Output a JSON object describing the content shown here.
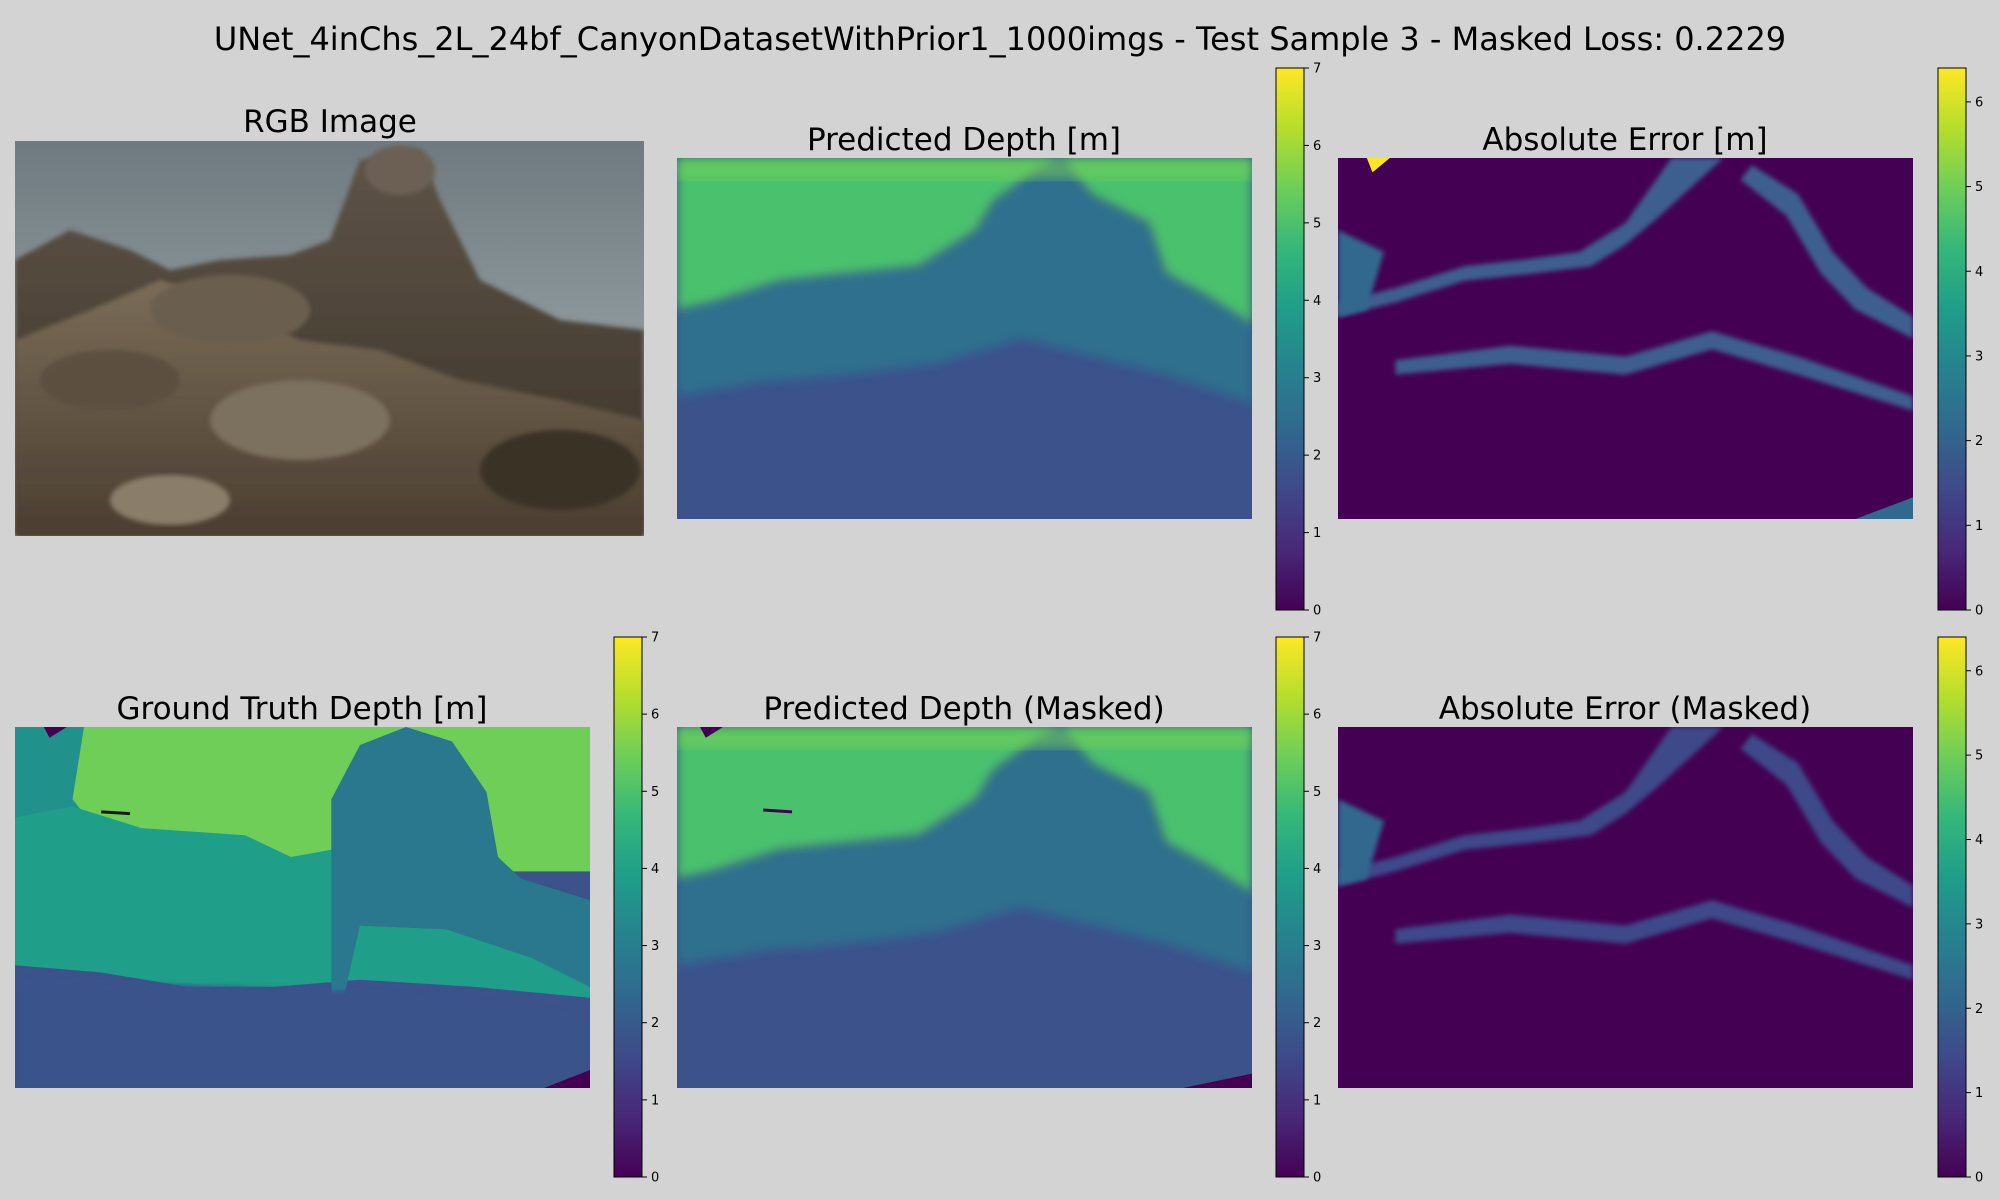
{
  "suptitle": "UNet_4inChs_2L_24bf_CanyonDatasetWithPrior1_1000imgs - Test Sample 3 - Masked Loss: 0.2229",
  "colormap": {
    "name": "viridis",
    "stops": [
      "#440154",
      "#482878",
      "#3e4989",
      "#31688e",
      "#26828e",
      "#1f9e89",
      "#35b779",
      "#6ece58",
      "#b5de2b",
      "#fde725"
    ]
  },
  "panels": [
    {
      "id": "rgb",
      "title": "RGB Image",
      "kind": "photo"
    },
    {
      "id": "pred",
      "title": "Predicted Depth [m]",
      "kind": "depth",
      "mask": false,
      "colorbar": {
        "min": 0,
        "max": 7,
        "ticks": [
          "0",
          "1",
          "2",
          "3",
          "4",
          "5",
          "6",
          "7"
        ]
      }
    },
    {
      "id": "err",
      "title": "Absolute Error [m]",
      "kind": "error",
      "mask": false,
      "colorbar": {
        "min": 0,
        "max": 6.4,
        "ticks": [
          "0",
          "1",
          "2",
          "3",
          "4",
          "5",
          "6"
        ]
      }
    },
    {
      "id": "gt",
      "title": "Ground Truth Depth [m]",
      "kind": "gt",
      "mask": true,
      "colorbar": {
        "min": 0,
        "max": 7,
        "ticks": [
          "0",
          "1",
          "2",
          "3",
          "4",
          "5",
          "6",
          "7"
        ]
      }
    },
    {
      "id": "predm",
      "title": "Predicted Depth (Masked)",
      "kind": "depth",
      "mask": true,
      "colorbar": {
        "min": 0,
        "max": 7,
        "ticks": [
          "0",
          "1",
          "2",
          "3",
          "4",
          "5",
          "6",
          "7"
        ]
      }
    },
    {
      "id": "errm",
      "title": "Absolute Error (Masked)",
      "kind": "error",
      "mask": true,
      "colorbar": {
        "min": 0,
        "max": 6.4,
        "ticks": [
          "0",
          "1",
          "2",
          "3",
          "4",
          "5",
          "6"
        ]
      }
    }
  ],
  "chart_data": {
    "type": "heatmap",
    "title": "UNet_4inChs_2L_24bf_CanyonDatasetWithPrior1_1000imgs - Test Sample 3 - Masked Loss: 0.2229",
    "masked_loss": 0.2229,
    "subplots": [
      {
        "title": "RGB Image",
        "type": "image"
      },
      {
        "title": "Predicted Depth [m]",
        "zlim": [
          0,
          7
        ],
        "approx_far_region_value": 5.0,
        "approx_near_region_value": 1.8
      },
      {
        "title": "Absolute Error [m]",
        "zlim": [
          0,
          6.4
        ],
        "approx_typical_value": 0.2,
        "approx_edge_band_value": 1.5
      },
      {
        "title": "Ground Truth Depth [m]",
        "zlim": [
          0,
          7
        ],
        "approx_far_region_value": 5.3,
        "approx_rock_value": 2.7,
        "approx_near_region_value": 1.6
      },
      {
        "title": "Predicted Depth (Masked)",
        "zlim": [
          0,
          7
        ],
        "approx_far_region_value": 5.0,
        "approx_near_region_value": 1.8
      },
      {
        "title": "Absolute Error (Masked)",
        "zlim": [
          0,
          6.4
        ],
        "approx_typical_value": 0.2,
        "approx_edge_band_value": 1.0
      }
    ]
  }
}
